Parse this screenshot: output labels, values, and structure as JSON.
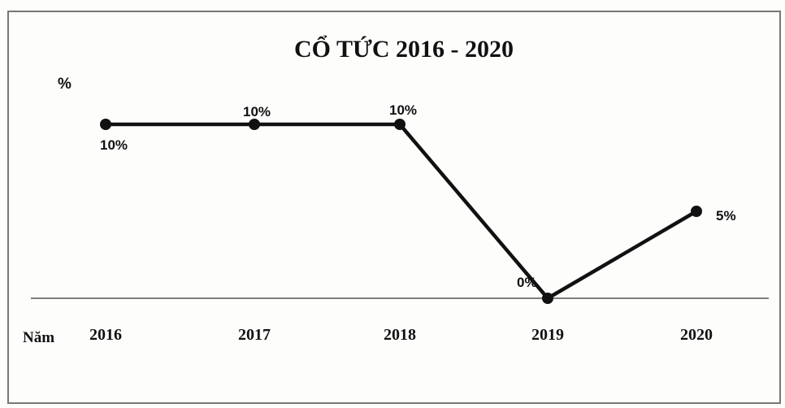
{
  "chart_data": {
    "type": "line",
    "title": "CỔ TỨC 2016 - 2020",
    "ylabel": "%",
    "xlabel": "Năm",
    "categories": [
      "2016",
      "2017",
      "2018",
      "2019",
      "2020"
    ],
    "values": [
      10,
      10,
      10,
      0,
      5
    ],
    "data_labels": [
      "10%",
      "10%",
      "10%",
      "0%",
      "5%"
    ],
    "ylim": [
      0,
      10
    ],
    "grid": false,
    "legend": "none",
    "line_color": "#111111"
  }
}
